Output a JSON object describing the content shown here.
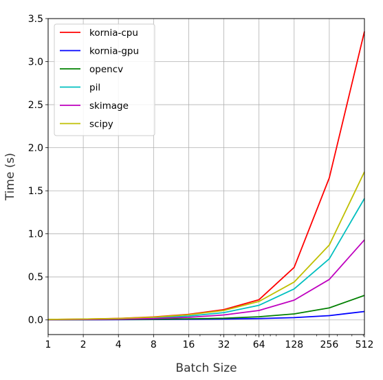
{
  "chart_data": {
    "type": "line",
    "title": "",
    "xlabel": "Batch Size",
    "ylabel": "Time (s)",
    "x_scale": "log2",
    "x": [
      1,
      2,
      4,
      8,
      16,
      32,
      64,
      128,
      256,
      512
    ],
    "x_tick_labels": [
      "1",
      "2",
      "4",
      "8",
      "16",
      "32",
      "64",
      "128",
      "256",
      "512"
    ],
    "y_ticks": [
      0.0,
      0.5,
      1.0,
      1.5,
      2.0,
      2.5,
      3.0,
      3.5
    ],
    "y_tick_labels": [
      "0.0",
      "0.5",
      "1.0",
      "1.5",
      "2.0",
      "2.5",
      "3.0",
      "3.5"
    ],
    "xlim": [
      1,
      512
    ],
    "ylim": [
      -0.17,
      3.5
    ],
    "grid": true,
    "legend_position": "top-left",
    "series": [
      {
        "name": "kornia-cpu",
        "color": "#ff0000",
        "values": [
          0.006,
          0.01,
          0.018,
          0.035,
          0.065,
          0.12,
          0.235,
          0.61,
          1.65,
          3.35
        ]
      },
      {
        "name": "kornia-gpu",
        "color": "#0000ff",
        "values": [
          0.001,
          0.002,
          0.003,
          0.005,
          0.008,
          0.011,
          0.016,
          0.027,
          0.05,
          0.098
        ]
      },
      {
        "name": "opencv",
        "color": "#008000",
        "values": [
          0.002,
          0.003,
          0.005,
          0.008,
          0.013,
          0.02,
          0.037,
          0.07,
          0.14,
          0.285
        ]
      },
      {
        "name": "pil",
        "color": "#00bfbf",
        "values": [
          0.005,
          0.008,
          0.013,
          0.025,
          0.045,
          0.085,
          0.17,
          0.36,
          0.71,
          1.41
        ]
      },
      {
        "name": "skimage",
        "color": "#bf00bf",
        "values": [
          0.003,
          0.005,
          0.009,
          0.016,
          0.03,
          0.058,
          0.11,
          0.23,
          0.47,
          0.93
        ]
      },
      {
        "name": "scipy",
        "color": "#bfbf00",
        "values": [
          0.006,
          0.01,
          0.017,
          0.032,
          0.06,
          0.11,
          0.215,
          0.44,
          0.87,
          1.72
        ]
      }
    ]
  }
}
